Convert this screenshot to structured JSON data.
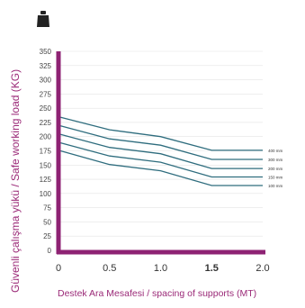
{
  "icon": "weight-icon",
  "colors": {
    "axis": "#8e2273",
    "line": "#2f6d7e",
    "label": "#9b2a78"
  },
  "chart_data": {
    "type": "line",
    "ylabel": "Güvenli çalışma yükü / Safe working load (KG)",
    "xlabel": "Destek Ara Mesafesi / spacing of supports (MT)",
    "x_ticks": [
      "0",
      "0.5",
      "1.0",
      "1.5",
      "2.0"
    ],
    "x_highlight": "1.5",
    "y_ticks": [
      "0",
      "25",
      "50",
      "75",
      "100",
      "125",
      "150",
      "175",
      "200",
      "225",
      "250",
      "275",
      "300",
      "325",
      "350"
    ],
    "xlim": [
      0,
      2.0
    ],
    "ylim": [
      0,
      350
    ],
    "x": [
      0,
      0.5,
      1.0,
      1.5,
      2.0
    ],
    "series": [
      {
        "name": "400 mm",
        "values": [
          235,
          212,
          200,
          176,
          176
        ]
      },
      {
        "name": "300 mm",
        "values": [
          220,
          196,
          185,
          160,
          160
        ]
      },
      {
        "name": "200 mm",
        "values": [
          205,
          181,
          170,
          144,
          144
        ]
      },
      {
        "name": "150 mm",
        "values": [
          190,
          166,
          155,
          129,
          129
        ]
      },
      {
        "name": "100 mm",
        "values": [
          176,
          151,
          140,
          114,
          114
        ]
      }
    ]
  }
}
